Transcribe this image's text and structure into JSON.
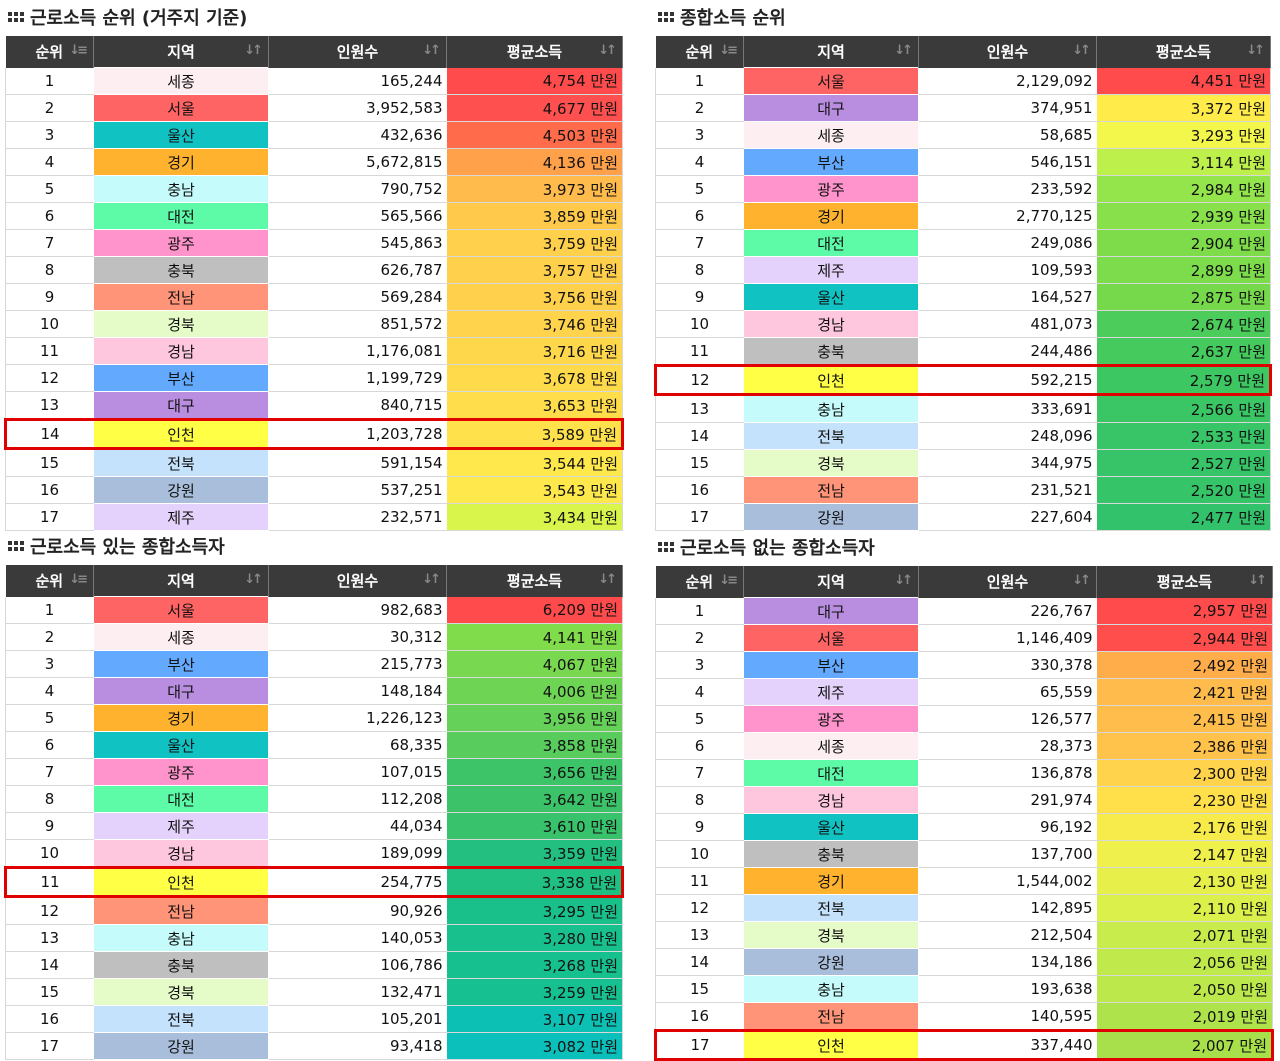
{
  "panels": [
    {
      "title": "근로소득 순위 (거주지 기준)",
      "headers": [
        "순위",
        "지역",
        "인원수",
        "평균소득"
      ],
      "highlight": 14,
      "rows": [
        {
          "rank": "1",
          "region": "세종",
          "count": "165,244",
          "income": "4,754 만원",
          "rc": "#fdeef2",
          "ic": "#ff4b4b"
        },
        {
          "rank": "2",
          "region": "서울",
          "count": "3,952,583",
          "income": "4,677 만원",
          "rc": "#ff6464",
          "ic": "#ff5050"
        },
        {
          "rank": "3",
          "region": "울산",
          "count": "432,636",
          "income": "4,503 만원",
          "rc": "#11c2c2",
          "ic": "#ff6b4b"
        },
        {
          "rank": "4",
          "region": "경기",
          "count": "5,672,815",
          "income": "4,136 만원",
          "rc": "#ffb22e",
          "ic": "#ffa04b"
        },
        {
          "rank": "5",
          "region": "충남",
          "count": "790,752",
          "income": "3,973 만원",
          "rc": "#c6fbfb",
          "ic": "#ffbb4b"
        },
        {
          "rank": "6",
          "region": "대전",
          "count": "565,566",
          "income": "3,859 만원",
          "rc": "#5dfba7",
          "ic": "#ffc94b"
        },
        {
          "rank": "7",
          "region": "광주",
          "count": "545,863",
          "income": "3,759 만원",
          "rc": "#ff94cc",
          "ic": "#ffd04b"
        },
        {
          "rank": "8",
          "region": "충북",
          "count": "626,787",
          "income": "3,757 만원",
          "rc": "#bfbfbf",
          "ic": "#ffd04b"
        },
        {
          "rank": "9",
          "region": "전남",
          "count": "569,284",
          "income": "3,756 만원",
          "rc": "#ff9479",
          "ic": "#ffd04b"
        },
        {
          "rank": "10",
          "region": "경북",
          "count": "851,572",
          "income": "3,746 만원",
          "rc": "#e6fcc8",
          "ic": "#ffd34b"
        },
        {
          "rank": "11",
          "region": "경남",
          "count": "1,176,081",
          "income": "3,716 만원",
          "rc": "#ffc7de",
          "ic": "#ffd74b"
        },
        {
          "rank": "12",
          "region": "부산",
          "count": "1,199,729",
          "income": "3,678 만원",
          "rc": "#63aaff",
          "ic": "#ffdb4b"
        },
        {
          "rank": "13",
          "region": "대구",
          "count": "840,715",
          "income": "3,653 만원",
          "rc": "#b98ee0",
          "ic": "#ffdd4b"
        },
        {
          "rank": "14",
          "region": "인천",
          "count": "1,203,728",
          "income": "3,589 만원",
          "rc": "#ffff45",
          "ic": "#ffe24b"
        },
        {
          "rank": "15",
          "region": "전북",
          "count": "591,154",
          "income": "3,544 만원",
          "rc": "#c4e2fc",
          "ic": "#ffe84b"
        },
        {
          "rank": "16",
          "region": "강원",
          "count": "537,251",
          "income": "3,543 만원",
          "rc": "#a9bedb",
          "ic": "#ffe84b"
        },
        {
          "rank": "17",
          "region": "제주",
          "count": "232,571",
          "income": "3,434 만원",
          "rc": "#e5d2fc",
          "ic": "#d9f54b"
        }
      ]
    },
    {
      "title": "종합소득 순위",
      "headers": [
        "순위",
        "지역",
        "인원수",
        "평균소득"
      ],
      "highlight": 12,
      "rows": [
        {
          "rank": "1",
          "region": "서울",
          "count": "2,129,092",
          "income": "4,451 만원",
          "rc": "#ff6464",
          "ic": "#ff4b4b"
        },
        {
          "rank": "2",
          "region": "대구",
          "count": "374,951",
          "income": "3,372 만원",
          "rc": "#b98ee0",
          "ic": "#ffec4b"
        },
        {
          "rank": "3",
          "region": "세종",
          "count": "58,685",
          "income": "3,293 만원",
          "rc": "#fdeef2",
          "ic": "#f4f74b"
        },
        {
          "rank": "4",
          "region": "부산",
          "count": "546,151",
          "income": "3,114 만원",
          "rc": "#63aaff",
          "ic": "#bdf04b"
        },
        {
          "rank": "5",
          "region": "광주",
          "count": "233,592",
          "income": "2,984 만원",
          "rc": "#ff94cc",
          "ic": "#94e44b"
        },
        {
          "rank": "6",
          "region": "경기",
          "count": "2,770,125",
          "income": "2,939 만원",
          "rc": "#ffb22e",
          "ic": "#88e04b"
        },
        {
          "rank": "7",
          "region": "대전",
          "count": "249,086",
          "income": "2,904 만원",
          "rc": "#5dfba7",
          "ic": "#7edc4b"
        },
        {
          "rank": "8",
          "region": "제주",
          "count": "109,593",
          "income": "2,899 만원",
          "rc": "#e5d2fc",
          "ic": "#7cdc4b"
        },
        {
          "rank": "9",
          "region": "울산",
          "count": "164,527",
          "income": "2,875 만원",
          "rc": "#11c2c2",
          "ic": "#76d84b"
        },
        {
          "rank": "10",
          "region": "경남",
          "count": "481,073",
          "income": "2,674 만원",
          "rc": "#ffc7de",
          "ic": "#4ccd5b"
        },
        {
          "rank": "11",
          "region": "충북",
          "count": "244,486",
          "income": "2,637 만원",
          "rc": "#bfbfbf",
          "ic": "#45ca5e"
        },
        {
          "rank": "12",
          "region": "인천",
          "count": "592,215",
          "income": "2,579 만원",
          "rc": "#ffff45",
          "ic": "#3dc763"
        },
        {
          "rank": "13",
          "region": "충남",
          "count": "333,691",
          "income": "2,566 만원",
          "rc": "#c6fbfb",
          "ic": "#3bc665"
        },
        {
          "rank": "14",
          "region": "전북",
          "count": "248,096",
          "income": "2,533 만원",
          "rc": "#c4e2fc",
          "ic": "#38c567"
        },
        {
          "rank": "15",
          "region": "경북",
          "count": "344,975",
          "income": "2,527 만원",
          "rc": "#e6fcc8",
          "ic": "#37c468"
        },
        {
          "rank": "16",
          "region": "전남",
          "count": "231,521",
          "income": "2,520 만원",
          "rc": "#ff9479",
          "ic": "#36c469"
        },
        {
          "rank": "17",
          "region": "강원",
          "count": "227,604",
          "income": "2,477 만원",
          "rc": "#a9bedb",
          "ic": "#32c26b"
        }
      ]
    },
    {
      "title": "근로소득 있는 종합소득자",
      "headers": [
        "순위",
        "지역",
        "인원수",
        "평균소득"
      ],
      "highlight": 11,
      "rows": [
        {
          "rank": "1",
          "region": "서울",
          "count": "982,683",
          "income": "6,209 만원",
          "rc": "#ff6464",
          "ic": "#ff4b4b"
        },
        {
          "rank": "2",
          "region": "세종",
          "count": "30,312",
          "income": "4,141 만원",
          "rc": "#fdeef2",
          "ic": "#80dc4b"
        },
        {
          "rank": "3",
          "region": "부산",
          "count": "215,773",
          "income": "4,067 만원",
          "rc": "#63aaff",
          "ic": "#78d84f"
        },
        {
          "rank": "4",
          "region": "대구",
          "count": "148,184",
          "income": "4,006 만원",
          "rc": "#b98ee0",
          "ic": "#6ed453"
        },
        {
          "rank": "5",
          "region": "경기",
          "count": "1,226,123",
          "income": "3,956 만원",
          "rc": "#ffb22e",
          "ic": "#66d158"
        },
        {
          "rank": "6",
          "region": "울산",
          "count": "68,335",
          "income": "3,858 만원",
          "rc": "#11c2c2",
          "ic": "#58cc5d"
        },
        {
          "rank": "7",
          "region": "광주",
          "count": "107,015",
          "income": "3,656 만원",
          "rc": "#ff94cc",
          "ic": "#3ec468"
        },
        {
          "rank": "8",
          "region": "대전",
          "count": "112,208",
          "income": "3,642 만원",
          "rc": "#5dfba7",
          "ic": "#3cc369"
        },
        {
          "rank": "9",
          "region": "제주",
          "count": "44,034",
          "income": "3,610 만원",
          "rc": "#e5d2fc",
          "ic": "#38c26b"
        },
        {
          "rank": "10",
          "region": "경남",
          "count": "189,099",
          "income": "3,359 만원",
          "rc": "#ffc7de",
          "ic": "#22bf80"
        },
        {
          "rank": "11",
          "region": "인천",
          "count": "254,775",
          "income": "3,338 만원",
          "rc": "#ffff45",
          "ic": "#20bf82"
        },
        {
          "rank": "12",
          "region": "전남",
          "count": "90,926",
          "income": "3,295 만원",
          "rc": "#ff9479",
          "ic": "#1ac08a"
        },
        {
          "rank": "13",
          "region": "충남",
          "count": "140,053",
          "income": "3,280 만원",
          "rc": "#c6fbfb",
          "ic": "#18c08d"
        },
        {
          "rank": "14",
          "region": "충북",
          "count": "106,786",
          "income": "3,268 만원",
          "rc": "#bfbfbf",
          "ic": "#17c08f"
        },
        {
          "rank": "15",
          "region": "경북",
          "count": "132,471",
          "income": "3,259 만원",
          "rc": "#e6fcc8",
          "ic": "#16c090"
        },
        {
          "rank": "16",
          "region": "전북",
          "count": "105,201",
          "income": "3,107 만원",
          "rc": "#c4e2fc",
          "ic": "#0cc0b4"
        },
        {
          "rank": "17",
          "region": "강원",
          "count": "93,418",
          "income": "3,082 만원",
          "rc": "#a9bedb",
          "ic": "#0bc0ba"
        }
      ]
    },
    {
      "title": "근로소득 없는 종합소득자",
      "headers": [
        "순위",
        "지역",
        "인원수",
        "평균소득"
      ],
      "highlight": 17,
      "rows": [
        {
          "rank": "1",
          "region": "대구",
          "count": "226,767",
          "income": "2,957 만원",
          "rc": "#b98ee0",
          "ic": "#ff4b4b"
        },
        {
          "rank": "2",
          "region": "서울",
          "count": "1,146,409",
          "income": "2,944 만원",
          "rc": "#ff6464",
          "ic": "#ff4e4b"
        },
        {
          "rank": "3",
          "region": "부산",
          "count": "330,378",
          "income": "2,492 만원",
          "rc": "#63aaff",
          "ic": "#ffac4b"
        },
        {
          "rank": "4",
          "region": "제주",
          "count": "65,559",
          "income": "2,421 만원",
          "rc": "#e5d2fc",
          "ic": "#ffbb4b"
        },
        {
          "rank": "5",
          "region": "광주",
          "count": "126,577",
          "income": "2,415 만원",
          "rc": "#ff94cc",
          "ic": "#ffbd4b"
        },
        {
          "rank": "6",
          "region": "세종",
          "count": "28,373",
          "income": "2,386 만원",
          "rc": "#fdeef2",
          "ic": "#ffc24b"
        },
        {
          "rank": "7",
          "region": "대전",
          "count": "136,878",
          "income": "2,300 만원",
          "rc": "#5dfba7",
          "ic": "#ffd34b"
        },
        {
          "rank": "8",
          "region": "경남",
          "count": "291,974",
          "income": "2,230 만원",
          "rc": "#ffc7de",
          "ic": "#ffe04b"
        },
        {
          "rank": "9",
          "region": "울산",
          "count": "96,192",
          "income": "2,176 만원",
          "rc": "#11c2c2",
          "ic": "#f7ea4b"
        },
        {
          "rank": "10",
          "region": "충북",
          "count": "137,700",
          "income": "2,147 만원",
          "rc": "#bfbfbf",
          "ic": "#eff04b"
        },
        {
          "rank": "11",
          "region": "경기",
          "count": "1,544,002",
          "income": "2,130 만원",
          "rc": "#ffb22e",
          "ic": "#e7f04b"
        },
        {
          "rank": "12",
          "region": "전북",
          "count": "142,895",
          "income": "2,110 만원",
          "rc": "#c4e2fc",
          "ic": "#dcf04b"
        },
        {
          "rank": "13",
          "region": "경북",
          "count": "212,504",
          "income": "2,071 만원",
          "rc": "#e6fcc8",
          "ic": "#c8ec4b"
        },
        {
          "rank": "14",
          "region": "강원",
          "count": "134,186",
          "income": "2,056 만원",
          "rc": "#a9bedb",
          "ic": "#c0ea4b"
        },
        {
          "rank": "15",
          "region": "충남",
          "count": "193,638",
          "income": "2,050 만원",
          "rc": "#c6fbfb",
          "ic": "#bce84b"
        },
        {
          "rank": "16",
          "region": "전남",
          "count": "140,595",
          "income": "2,019 만원",
          "rc": "#ff9479",
          "ic": "#aee34b"
        },
        {
          "rank": "17",
          "region": "인천",
          "count": "337,440",
          "income": "2,007 만원",
          "rc": "#ffff45",
          "ic": "#a8e04b"
        }
      ]
    }
  ]
}
